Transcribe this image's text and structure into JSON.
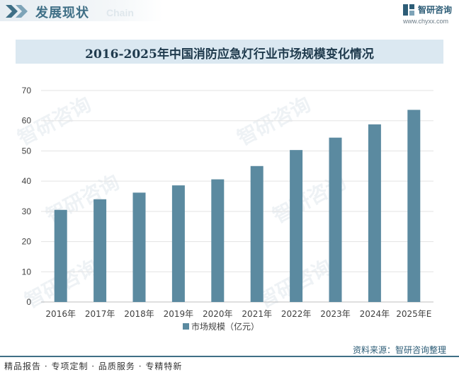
{
  "header": {
    "section_title": "发展现状",
    "section_subtitle": "Chain",
    "brand_name": "智研咨询",
    "brand_url": "www.chyxx.com"
  },
  "colors": {
    "bar": "#5b8aa0",
    "accent": "#3f6f86",
    "title_band": "#dbe8f1"
  },
  "chart_data": {
    "type": "bar",
    "title": "2016-2025年中国消防应急灯行业市场规模变化情况",
    "categories": [
      "2016年",
      "2017年",
      "2018年",
      "2019年",
      "2020年",
      "2021年",
      "2022年",
      "2023年",
      "2024年",
      "2025年E"
    ],
    "series": [
      {
        "name": "市场规模（亿元）",
        "values": [
          30.5,
          34.0,
          36.2,
          38.6,
          40.6,
          45.0,
          50.3,
          54.4,
          58.8,
          63.6
        ]
      }
    ],
    "ylim": [
      0,
      70
    ],
    "yticks": [
      "0",
      "10",
      "20",
      "30",
      "40",
      "50",
      "60",
      "70"
    ],
    "grid": true,
    "legend": "bottom-center"
  },
  "watermark_text": "智研咨询",
  "footer": {
    "services": "精品报告 · 专项定制 · 品质服务 · 专精特新",
    "source": "资料来源：智研咨询整理"
  }
}
